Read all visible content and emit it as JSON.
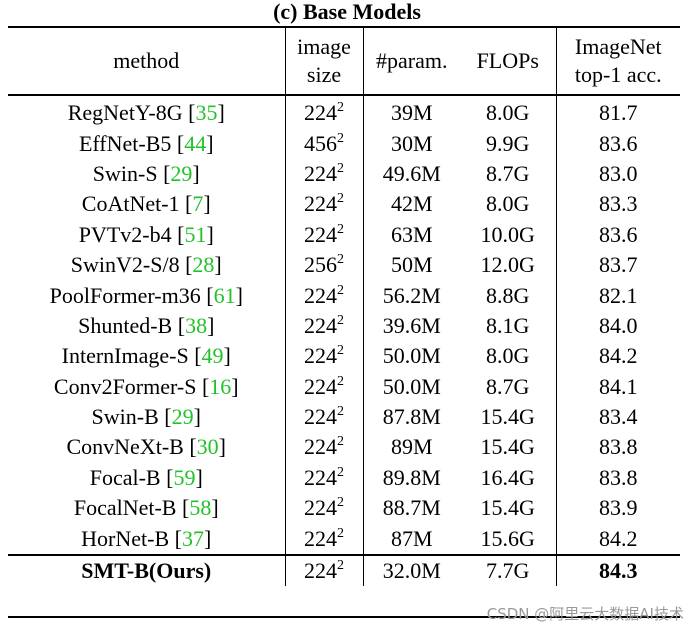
{
  "caption": "(c) Base Models",
  "headers": {
    "method": "method",
    "image_size_line1": "image",
    "image_size_line2": "size",
    "params": "#param.",
    "flops": "FLOPs",
    "acc_line1": "ImageNet",
    "acc_line2": "top-1 acc."
  },
  "rows": [
    {
      "name": "RegNetY-8G",
      "ref": "35",
      "size": "224",
      "exp": "2",
      "params": "39M",
      "flops": "8.0G",
      "acc": "81.7"
    },
    {
      "name": "EffNet-B5",
      "ref": "44",
      "size": "456",
      "exp": "2",
      "params": "30M",
      "flops": "9.9G",
      "acc": "83.6"
    },
    {
      "name": "Swin-S",
      "ref": "29",
      "size": "224",
      "exp": "2",
      "params": "49.6M",
      "flops": "8.7G",
      "acc": "83.0"
    },
    {
      "name": "CoAtNet-1",
      "ref": "7",
      "size": "224",
      "exp": "2",
      "params": "42M",
      "flops": "8.0G",
      "acc": "83.3"
    },
    {
      "name": "PVTv2-b4",
      "ref": "51",
      "size": "224",
      "exp": "2",
      "params": "63M",
      "flops": "10.0G",
      "acc": "83.6"
    },
    {
      "name": "SwinV2-S/8",
      "ref": "28",
      "size": "256",
      "exp": "2",
      "params": "50M",
      "flops": "12.0G",
      "acc": "83.7"
    },
    {
      "name": "PoolFormer-m36",
      "ref": "61",
      "size": "224",
      "exp": "2",
      "params": "56.2M",
      "flops": "8.8G",
      "acc": "82.1"
    },
    {
      "name": "Shunted-B",
      "ref": "38",
      "size": "224",
      "exp": "2",
      "params": "39.6M",
      "flops": "8.1G",
      "acc": "84.0"
    },
    {
      "name": "InternImage-S",
      "ref": "49",
      "size": "224",
      "exp": "2",
      "params": "50.0M",
      "flops": "8.0G",
      "acc": "84.2"
    },
    {
      "name": "Conv2Former-S",
      "ref": "16",
      "size": "224",
      "exp": "2",
      "params": "50.0M",
      "flops": "8.7G",
      "acc": "84.1"
    },
    {
      "name": "Swin-B",
      "ref": "29",
      "size": "224",
      "exp": "2",
      "params": "87.8M",
      "flops": "15.4G",
      "acc": "83.4"
    },
    {
      "name": "ConvNeXt-B",
      "ref": "30",
      "size": "224",
      "exp": "2",
      "params": "89M",
      "flops": "15.4G",
      "acc": "83.8"
    },
    {
      "name": "Focal-B",
      "ref": "59",
      "size": "224",
      "exp": "2",
      "params": "89.8M",
      "flops": "16.4G",
      "acc": "83.8"
    },
    {
      "name": "FocalNet-B",
      "ref": "58",
      "size": "224",
      "exp": "2",
      "params": "88.7M",
      "flops": "15.4G",
      "acc": "83.9"
    },
    {
      "name": "HorNet-B",
      "ref": "37",
      "size": "224",
      "exp": "2",
      "params": "87M",
      "flops": "15.6G",
      "acc": "84.2"
    }
  ],
  "ours": {
    "name": "SMT-B(Ours)",
    "size": "224",
    "exp": "2",
    "params": "32.0M",
    "flops": "7.7G",
    "acc": "84.3"
  },
  "watermark": "CSDN @阿里云大数据AI技术",
  "colors": {
    "reference": "#22c22a",
    "rule": "#000000"
  }
}
